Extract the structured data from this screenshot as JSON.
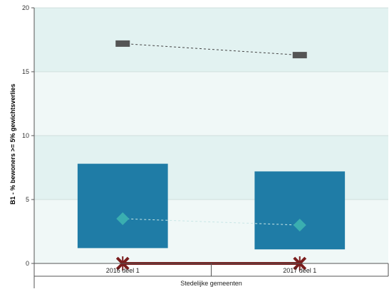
{
  "chart_data": {
    "type": "bar",
    "ylabel": "B1 - % bewoners >= 5% gewichtsverlies",
    "ylim": [
      0,
      20
    ],
    "yticks": [
      0,
      5,
      10,
      15,
      20
    ],
    "categories": [
      "2016 deel 1",
      "2017 deel 1"
    ],
    "group_label": "Stedelijke gemeenten",
    "bands": [
      {
        "from": 0,
        "to": 5,
        "color": "#f0f8f7"
      },
      {
        "from": 5,
        "to": 10,
        "color": "#e2f2f1"
      },
      {
        "from": 10,
        "to": 15,
        "color": "#f0f8f7"
      },
      {
        "from": 15,
        "to": 20,
        "color": "#e2f2f1"
      }
    ],
    "series": [
      {
        "type": "range-bar",
        "low": [
          1.2,
          1.1
        ],
        "high": [
          7.8,
          7.2
        ],
        "color": "#1f7ca6"
      },
      {
        "type": "marker-line",
        "marker": "rect",
        "values": [
          17.2,
          16.3
        ],
        "color": "#555555"
      },
      {
        "type": "marker-line",
        "marker": "diamond",
        "values": [
          3.5,
          3.0
        ],
        "color": "#3aaeb0"
      },
      {
        "type": "marker-line",
        "marker": "cross",
        "values": [
          0,
          0
        ],
        "color": "#7a1d1d"
      }
    ]
  }
}
